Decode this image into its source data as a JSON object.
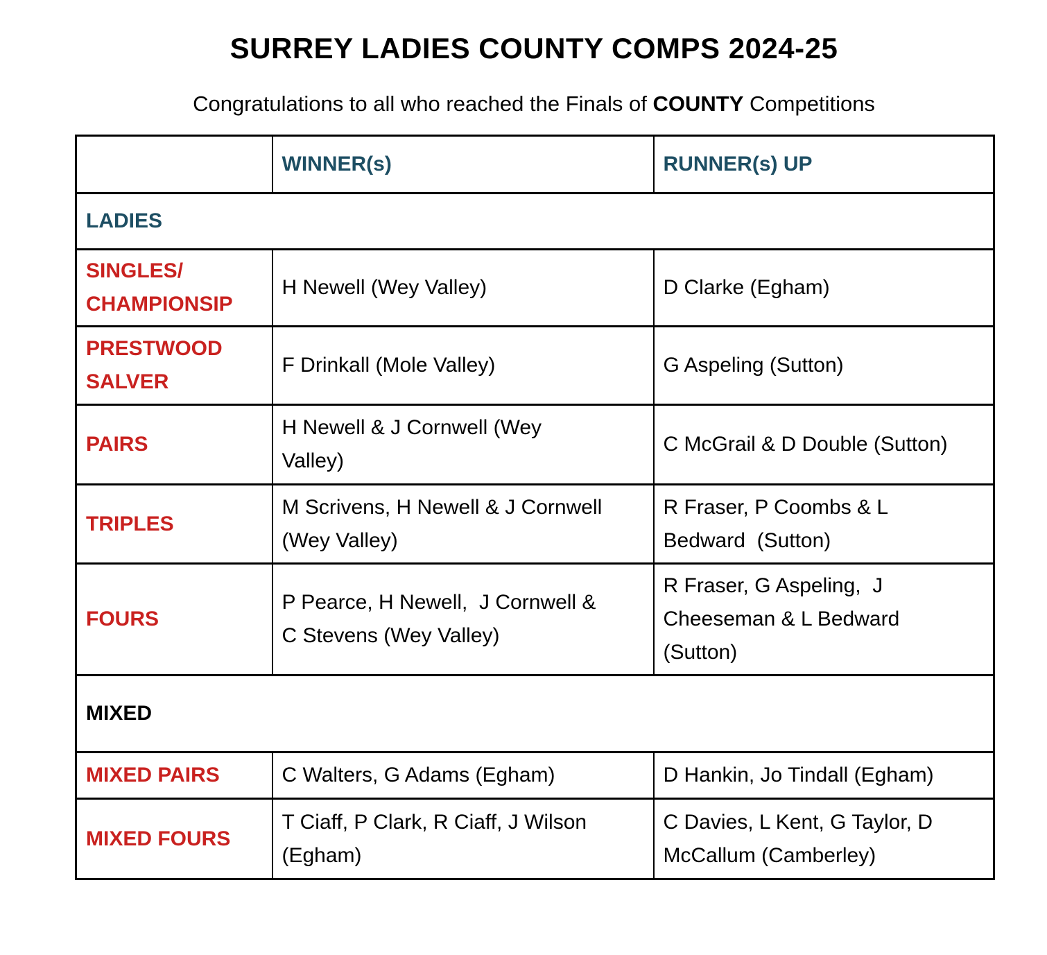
{
  "header": {
    "title": "SURREY LADIES COUNTY COMPS 2024-25",
    "subtitle": {
      "prefix": "Congratulations to all who reached the Finals of ",
      "bold": "COUNTY",
      "suffix": " Competitions"
    }
  },
  "table": {
    "columns": {
      "competition": "",
      "winner": "WINNER(s)",
      "runner_up": "RUNNER(s) UP"
    },
    "sections": [
      {
        "label": "LADIES",
        "rows": [
          {
            "competition": "SINGLES/\nCHAMPIONSIP",
            "winner": "H Newell (Wey Valley)",
            "runner_up": "D Clarke (Egham)"
          },
          {
            "competition": "PRESTWOOD\nSALVER",
            "winner": "F Drinkall (Mole Valley)",
            "runner_up": "G Aspeling (Sutton)"
          },
          {
            "competition": "PAIRS",
            "winner": "H Newell & J Cornwell (Wey\nValley)",
            "runner_up": "C McGrail & D Double (Sutton)"
          },
          {
            "competition": "TRIPLES",
            "winner": "M Scrivens, H Newell & J Cornwell\n(Wey Valley)",
            "runner_up": "R Fraser, P Coombs & L\nBedward  (Sutton)"
          },
          {
            "competition": "FOURS",
            "winner": "P Pearce, H Newell,  J Cornwell &\nC Stevens (Wey Valley)",
            "runner_up": "R Fraser, G Aspeling,  J\nCheeseman & L Bedward\n(Sutton)"
          }
        ]
      },
      {
        "label": "MIXED",
        "rows": [
          {
            "competition": "MIXED PAIRS",
            "winner": "C Walters, G Adams (Egham)",
            "runner_up": "D Hankin, Jo Tindall (Egham)"
          },
          {
            "competition": "MIXED FOURS",
            "winner": "T Ciaff, P Clark, R Ciaff, J Wilson\n(Egham)",
            "runner_up": "C Davies, L Kent, G Taylor, D\nMcCallum (Camberley)"
          }
        ]
      }
    ]
  },
  "colors": {
    "heading_teal": "#1D4E63",
    "label_red": "#C9211F",
    "border_black": "#000000"
  }
}
